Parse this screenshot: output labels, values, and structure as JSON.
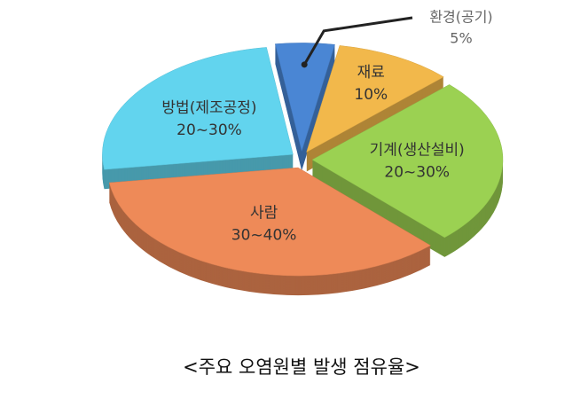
{
  "chart_data": {
    "type": "pie3d",
    "title": "<주요 오염원별 발생 점유율>",
    "categories": [
      "환경(공기)",
      "재료",
      "기계(생산설비)",
      "사람",
      "방법(제조공정)"
    ],
    "values": [
      5,
      10,
      25,
      35,
      25
    ],
    "value_labels": [
      "5%",
      "10%",
      "20~30%",
      "30~40%",
      "20~30%"
    ],
    "colors": [
      "#4a86d4",
      "#f2b84b",
      "#9bd152",
      "#ee8a58",
      "#62d4ee"
    ]
  }
}
